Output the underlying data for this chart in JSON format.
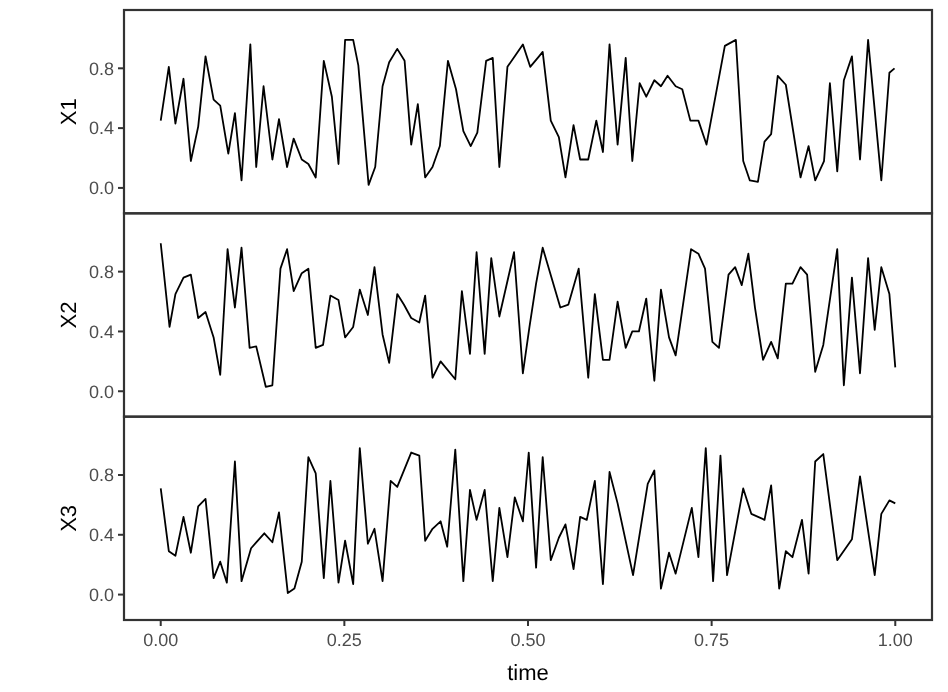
{
  "chart_data": [
    {
      "type": "line",
      "ylabel": "X1",
      "color": "#000000",
      "xlim": [
        -0.05,
        1.05
      ],
      "ylim": [
        -0.17,
        1.19
      ],
      "yticks": [
        {
          "value": 0,
          "label": "0.0"
        },
        {
          "value": 0.4,
          "label": "0.4"
        },
        {
          "value": 0.8,
          "label": "0.8"
        }
      ],
      "tick_labels": "y",
      "grid": false,
      "x": [
        0,
        0.011,
        0.02,
        0.031,
        0.041,
        0.051,
        0.061,
        0.072,
        0.081,
        0.092,
        0.101,
        0.11,
        0.122,
        0.13,
        0.14,
        0.152,
        0.161,
        0.172,
        0.181,
        0.192,
        0.201,
        0.211,
        0.222,
        0.233,
        0.242,
        0.251,
        0.262,
        0.269,
        0.283,
        0.292,
        0.302,
        0.311,
        0.322,
        0.332,
        0.341,
        0.35,
        0.36,
        0.37,
        0.38,
        0.391,
        0.402,
        0.412,
        0.422,
        0.431,
        0.443,
        0.452,
        0.461,
        0.472,
        0.482,
        0.493,
        0.503,
        0.515,
        0.52,
        0.531,
        0.542,
        0.551,
        0.562,
        0.571,
        0.582,
        0.593,
        0.602,
        0.611,
        0.622,
        0.633,
        0.642,
        0.652,
        0.661,
        0.672,
        0.681,
        0.69,
        0.701,
        0.71,
        0.721,
        0.732,
        0.743,
        0.768,
        0.783,
        0.793,
        0.802,
        0.813,
        0.822,
        0.831,
        0.84,
        0.851,
        0.871,
        0.882,
        0.891,
        0.903,
        0.911,
        0.921,
        0.93,
        0.941,
        0.952,
        0.963,
        0.981,
        0.992,
        0.999
      ],
      "values": [
        0.45,
        0.81,
        0.43,
        0.73,
        0.18,
        0.41,
        0.88,
        0.59,
        0.55,
        0.23,
        0.5,
        0.05,
        0.96,
        0.14,
        0.68,
        0.19,
        0.46,
        0.14,
        0.33,
        0.19,
        0.16,
        0.07,
        0.85,
        0.61,
        0.16,
        0.99,
        0.99,
        0.82,
        0.02,
        0.14,
        0.68,
        0.84,
        0.93,
        0.85,
        0.29,
        0.56,
        0.07,
        0.14,
        0.28,
        0.85,
        0.66,
        0.38,
        0.28,
        0.37,
        0.85,
        0.87,
        0.14,
        0.81,
        0.88,
        0.96,
        0.81,
        0.88,
        0.91,
        0.45,
        0.34,
        0.07,
        0.42,
        0.19,
        0.19,
        0.45,
        0.24,
        0.96,
        0.29,
        0.87,
        0.18,
        0.7,
        0.61,
        0.72,
        0.68,
        0.75,
        0.68,
        0.66,
        0.45,
        0.45,
        0.29,
        0.95,
        0.99,
        0.18,
        0.05,
        0.04,
        0.31,
        0.36,
        0.75,
        0.69,
        0.07,
        0.28,
        0.05,
        0.18,
        0.7,
        0.11,
        0.72,
        0.88,
        0.19,
        0.99,
        0.05,
        0.77,
        0.8
      ]
    },
    {
      "type": "line",
      "ylabel": "X2",
      "color": "#000000",
      "xlim": [
        -0.05,
        1.05
      ],
      "ylim": [
        -0.17,
        1.19
      ],
      "yticks": [
        {
          "value": 0,
          "label": "0.0"
        },
        {
          "value": 0.4,
          "label": "0.4"
        },
        {
          "value": 0.8,
          "label": "0.8"
        }
      ],
      "tick_labels": "y",
      "grid": false,
      "x": [
        0,
        0.012,
        0.02,
        0.031,
        0.041,
        0.051,
        0.061,
        0.072,
        0.081,
        0.091,
        0.101,
        0.11,
        0.121,
        0.13,
        0.143,
        0.152,
        0.163,
        0.172,
        0.181,
        0.192,
        0.201,
        0.211,
        0.221,
        0.231,
        0.242,
        0.251,
        0.262,
        0.271,
        0.282,
        0.291,
        0.302,
        0.311,
        0.322,
        0.331,
        0.341,
        0.352,
        0.36,
        0.37,
        0.381,
        0.401,
        0.41,
        0.421,
        0.43,
        0.441,
        0.45,
        0.461,
        0.481,
        0.493,
        0.502,
        0.511,
        0.52,
        0.544,
        0.555,
        0.569,
        0.582,
        0.591,
        0.602,
        0.611,
        0.622,
        0.633,
        0.642,
        0.651,
        0.661,
        0.672,
        0.681,
        0.692,
        0.701,
        0.722,
        0.732,
        0.741,
        0.751,
        0.76,
        0.773,
        0.782,
        0.791,
        0.8,
        0.809,
        0.82,
        0.831,
        0.84,
        0.851,
        0.86,
        0.871,
        0.88,
        0.891,
        0.902,
        0.921,
        0.93,
        0.941,
        0.952,
        0.963,
        0.972,
        0.981,
        0.992,
        1.0
      ],
      "values": [
        0.99,
        0.43,
        0.65,
        0.76,
        0.78,
        0.49,
        0.53,
        0.36,
        0.11,
        0.95,
        0.56,
        0.96,
        0.29,
        0.3,
        0.03,
        0.04,
        0.82,
        0.95,
        0.67,
        0.79,
        0.82,
        0.29,
        0.31,
        0.64,
        0.61,
        0.36,
        0.43,
        0.68,
        0.51,
        0.83,
        0.38,
        0.19,
        0.65,
        0.58,
        0.49,
        0.46,
        0.64,
        0.09,
        0.2,
        0.08,
        0.67,
        0.25,
        0.93,
        0.25,
        0.89,
        0.5,
        0.93,
        0.12,
        0.43,
        0.72,
        0.96,
        0.56,
        0.58,
        0.82,
        0.09,
        0.65,
        0.21,
        0.21,
        0.6,
        0.29,
        0.4,
        0.4,
        0.62,
        0.07,
        0.68,
        0.36,
        0.24,
        0.95,
        0.92,
        0.82,
        0.33,
        0.29,
        0.78,
        0.83,
        0.71,
        0.92,
        0.56,
        0.21,
        0.33,
        0.22,
        0.72,
        0.72,
        0.83,
        0.78,
        0.13,
        0.31,
        0.95,
        0.04,
        0.76,
        0.12,
        0.89,
        0.41,
        0.83,
        0.65,
        0.16
      ]
    },
    {
      "type": "line",
      "ylabel": "X3",
      "xlabel": "time",
      "color": "#000000",
      "xlim": [
        -0.05,
        1.05
      ],
      "ylim": [
        -0.17,
        1.19
      ],
      "xticks": [
        {
          "value": 0,
          "label": "0.00"
        },
        {
          "value": 0.25,
          "label": "0.25"
        },
        {
          "value": 0.5,
          "label": "0.50"
        },
        {
          "value": 0.75,
          "label": "0.75"
        },
        {
          "value": 1,
          "label": "1.00"
        }
      ],
      "yticks": [
        {
          "value": 0,
          "label": "0.0"
        },
        {
          "value": 0.4,
          "label": "0.4"
        },
        {
          "value": 0.8,
          "label": "0.8"
        }
      ],
      "grid": false,
      "x": [
        0,
        0.011,
        0.02,
        0.031,
        0.041,
        0.051,
        0.061,
        0.072,
        0.081,
        0.09,
        0.101,
        0.11,
        0.123,
        0.141,
        0.152,
        0.161,
        0.173,
        0.182,
        0.192,
        0.201,
        0.211,
        0.222,
        0.231,
        0.242,
        0.251,
        0.262,
        0.271,
        0.282,
        0.291,
        0.302,
        0.313,
        0.322,
        0.341,
        0.352,
        0.36,
        0.37,
        0.381,
        0.39,
        0.401,
        0.412,
        0.421,
        0.43,
        0.441,
        0.452,
        0.461,
        0.472,
        0.482,
        0.493,
        0.501,
        0.511,
        0.52,
        0.531,
        0.542,
        0.551,
        0.562,
        0.571,
        0.58,
        0.591,
        0.602,
        0.611,
        0.622,
        0.643,
        0.663,
        0.672,
        0.681,
        0.692,
        0.701,
        0.723,
        0.732,
        0.742,
        0.752,
        0.762,
        0.771,
        0.793,
        0.804,
        0.822,
        0.831,
        0.842,
        0.851,
        0.86,
        0.873,
        0.882,
        0.891,
        0.902,
        0.921,
        0.941,
        0.952,
        0.972,
        0.981,
        0.992,
        1.0
      ],
      "values": [
        0.71,
        0.29,
        0.26,
        0.52,
        0.28,
        0.59,
        0.64,
        0.11,
        0.22,
        0.08,
        0.89,
        0.09,
        0.31,
        0.41,
        0.35,
        0.55,
        0.01,
        0.04,
        0.22,
        0.92,
        0.81,
        0.11,
        0.76,
        0.08,
        0.36,
        0.07,
        0.98,
        0.34,
        0.44,
        0.09,
        0.76,
        0.72,
        0.95,
        0.93,
        0.36,
        0.44,
        0.49,
        0.32,
        0.97,
        0.09,
        0.7,
        0.5,
        0.7,
        0.09,
        0.58,
        0.25,
        0.65,
        0.49,
        0.95,
        0.18,
        0.92,
        0.23,
        0.38,
        0.47,
        0.17,
        0.52,
        0.5,
        0.76,
        0.07,
        0.82,
        0.61,
        0.13,
        0.74,
        0.83,
        0.04,
        0.28,
        0.14,
        0.58,
        0.25,
        0.98,
        0.09,
        0.93,
        0.13,
        0.71,
        0.54,
        0.5,
        0.73,
        0.04,
        0.29,
        0.25,
        0.5,
        0.14,
        0.89,
        0.94,
        0.23,
        0.37,
        0.79,
        0.13,
        0.54,
        0.63,
        0.61
      ]
    }
  ]
}
